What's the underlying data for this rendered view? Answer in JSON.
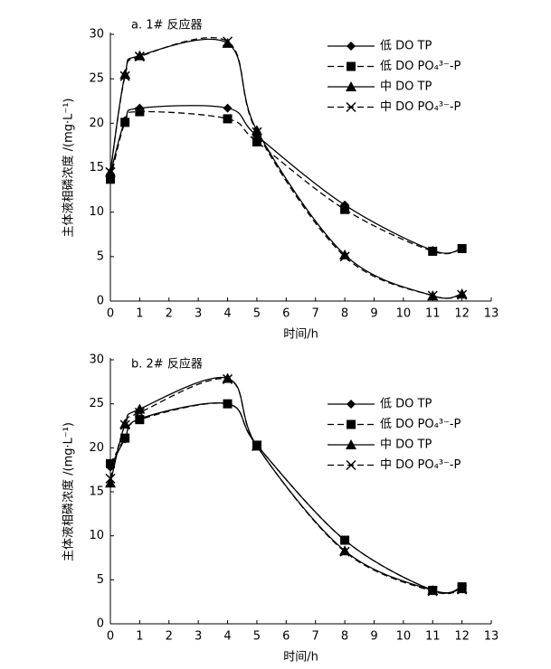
{
  "chart_data": [
    {
      "type": "line",
      "title": "a. 1# 反应器",
      "xlabel": "时间/h",
      "ylabel": "主体液相磷浓度 /(mg·L⁻¹)",
      "x": [
        0,
        0.5,
        1,
        4,
        5,
        8,
        11,
        12
      ],
      "xlim": [
        0,
        13
      ],
      "xticks": [
        0,
        1,
        2,
        3,
        4,
        5,
        6,
        7,
        8,
        9,
        10,
        11,
        12,
        13
      ],
      "ylim": [
        0,
        30
      ],
      "yticks": [
        0,
        5,
        10,
        15,
        20,
        25,
        30
      ],
      "series": [
        {
          "name": "低 DO TP",
          "color": "#000000",
          "marker": "diamond",
          "dash": false,
          "values": [
            14.3,
            20.3,
            21.7,
            21.7,
            18.6,
            10.8,
            5.7,
            5.9
          ]
        },
        {
          "name": "低 DO PO₄³⁻-P",
          "color": "#000000",
          "marker": "square",
          "dash": true,
          "values": [
            13.7,
            20.1,
            21.3,
            20.5,
            17.9,
            10.3,
            5.6,
            5.9
          ]
        },
        {
          "name": "中 DO TP",
          "color": "#000000",
          "marker": "triangle",
          "dash": false,
          "values": [
            14.5,
            25.5,
            27.6,
            29.0,
            19.2,
            5.2,
            0.6,
            0.8
          ]
        },
        {
          "name": "中 DO PO₄³⁻-P",
          "color": "#000000",
          "marker": "x",
          "dash": true,
          "values": [
            14.5,
            25.3,
            27.5,
            29.2,
            19.0,
            5.0,
            0.6,
            0.7
          ]
        }
      ]
    },
    {
      "type": "line",
      "title": "b. 2# 反应器",
      "xlabel": "时间/h",
      "ylabel": "主体液相磷浓度 /(mg·L⁻¹)",
      "x": [
        0,
        0.5,
        1,
        4,
        5,
        8,
        11,
        12
      ],
      "xlim": [
        0,
        13
      ],
      "xticks": [
        0,
        1,
        2,
        3,
        4,
        5,
        6,
        7,
        8,
        9,
        10,
        11,
        12,
        13
      ],
      "ylim": [
        0,
        30
      ],
      "yticks": [
        0,
        5,
        10,
        15,
        20,
        25,
        30
      ],
      "series": [
        {
          "name": "低 DO TP",
          "color": "#000000",
          "marker": "diamond",
          "dash": false,
          "values": [
            17.8,
            21.0,
            23.3,
            25.0,
            20.3,
            9.5,
            3.8,
            4.2
          ]
        },
        {
          "name": "低 DO PO₄³⁻-P",
          "color": "#000000",
          "marker": "square",
          "dash": true,
          "values": [
            18.2,
            21.1,
            23.2,
            25.0,
            20.3,
            9.5,
            3.8,
            4.2
          ]
        },
        {
          "name": "中 DO TP",
          "color": "#000000",
          "marker": "triangle",
          "dash": false,
          "values": [
            16.0,
            22.7,
            24.4,
            27.9,
            20.2,
            8.3,
            3.8,
            4.0
          ]
        },
        {
          "name": "中 DO PO₄³⁻-P",
          "color": "#000000",
          "marker": "x",
          "dash": true,
          "values": [
            16.5,
            22.6,
            24.0,
            27.8,
            20.2,
            8.2,
            3.7,
            3.9
          ]
        }
      ]
    }
  ]
}
